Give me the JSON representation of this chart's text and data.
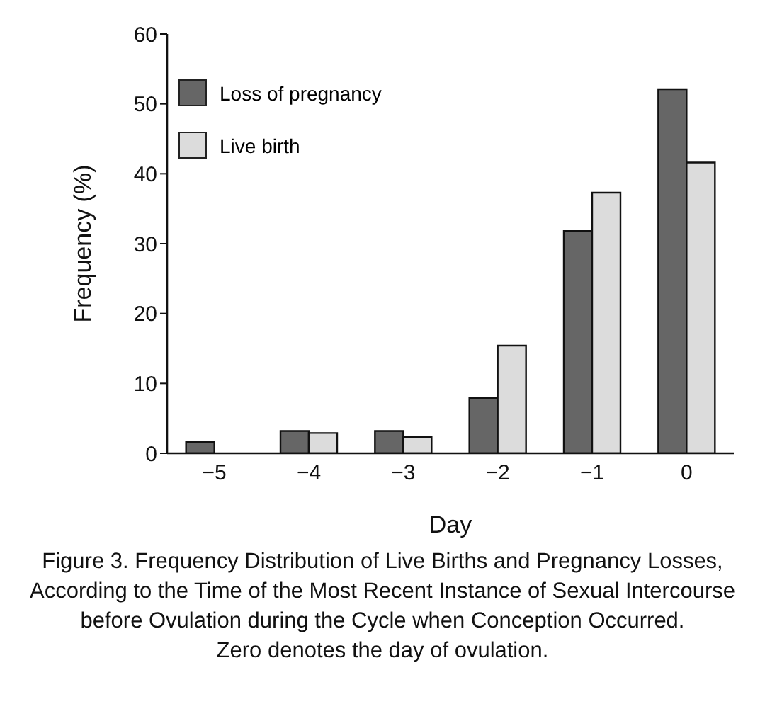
{
  "chart_data": {
    "type": "bar",
    "xlabel": "Day",
    "ylabel": "Frequency (%)",
    "categories": [
      "−5",
      "−4",
      "−3",
      "−2",
      "−1",
      "0"
    ],
    "series": [
      {
        "name": "Loss of pregnancy",
        "color": "#666666",
        "values": [
          1.6,
          3.2,
          3.2,
          7.9,
          31.8,
          52.1
        ]
      },
      {
        "name": "Live birth",
        "color": "#dcdcdc",
        "values": [
          0,
          2.9,
          2.3,
          15.4,
          37.3,
          41.6
        ]
      }
    ],
    "ylim": [
      0,
      60
    ],
    "yticks": [
      0,
      10,
      20,
      30,
      40,
      50,
      60
    ],
    "grid": false,
    "legend": "top left",
    "annotations": [
      "Figure 3. Frequency Distribution of Live Births and Pregnancy Losses, According to the Time of the Most Recent Instance of Sexual Intercourse before Ovulation during the Cycle when Conception Occurred.",
      "Zero denotes the day of ovulation."
    ]
  }
}
